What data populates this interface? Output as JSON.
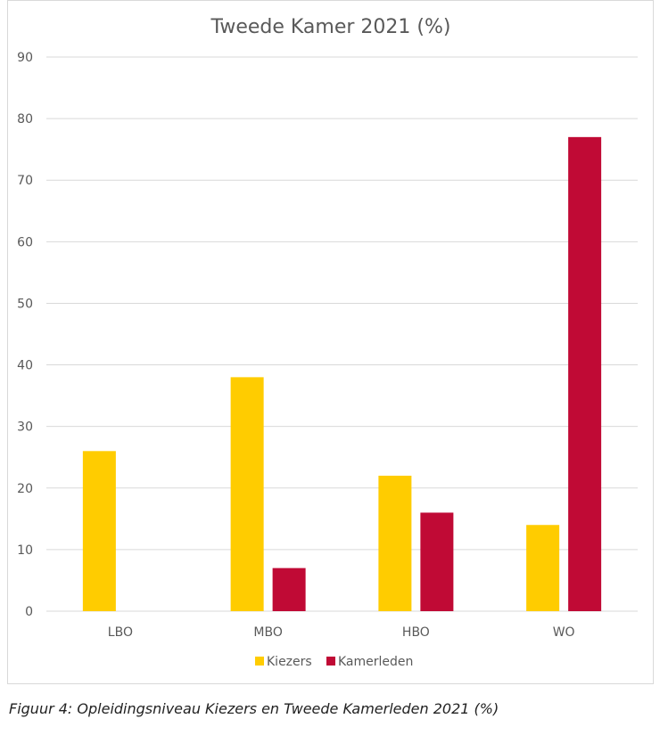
{
  "chart_data": {
    "type": "bar",
    "title": "Tweede Kamer 2021 (%)",
    "categories": [
      "LBO",
      "MBO",
      "HBO",
      "WO"
    ],
    "series": [
      {
        "name": "Kiezers",
        "color": "#ffcc00",
        "values": [
          26,
          38,
          22,
          14
        ]
      },
      {
        "name": "Kamerleden",
        "color": "#c00a35",
        "values": [
          0,
          7,
          16,
          77
        ]
      }
    ],
    "ylim": [
      0,
      90
    ],
    "yticks": [
      "0",
      "10",
      "20",
      "30",
      "40",
      "50",
      "60",
      "70",
      "80",
      "90"
    ],
    "xlabel": "",
    "ylabel": "",
    "grid": true,
    "legend": "bottom"
  },
  "caption": "Figuur 4: Opleidingsniveau Kiezers en Tweede Kamerleden 2021 (%)"
}
